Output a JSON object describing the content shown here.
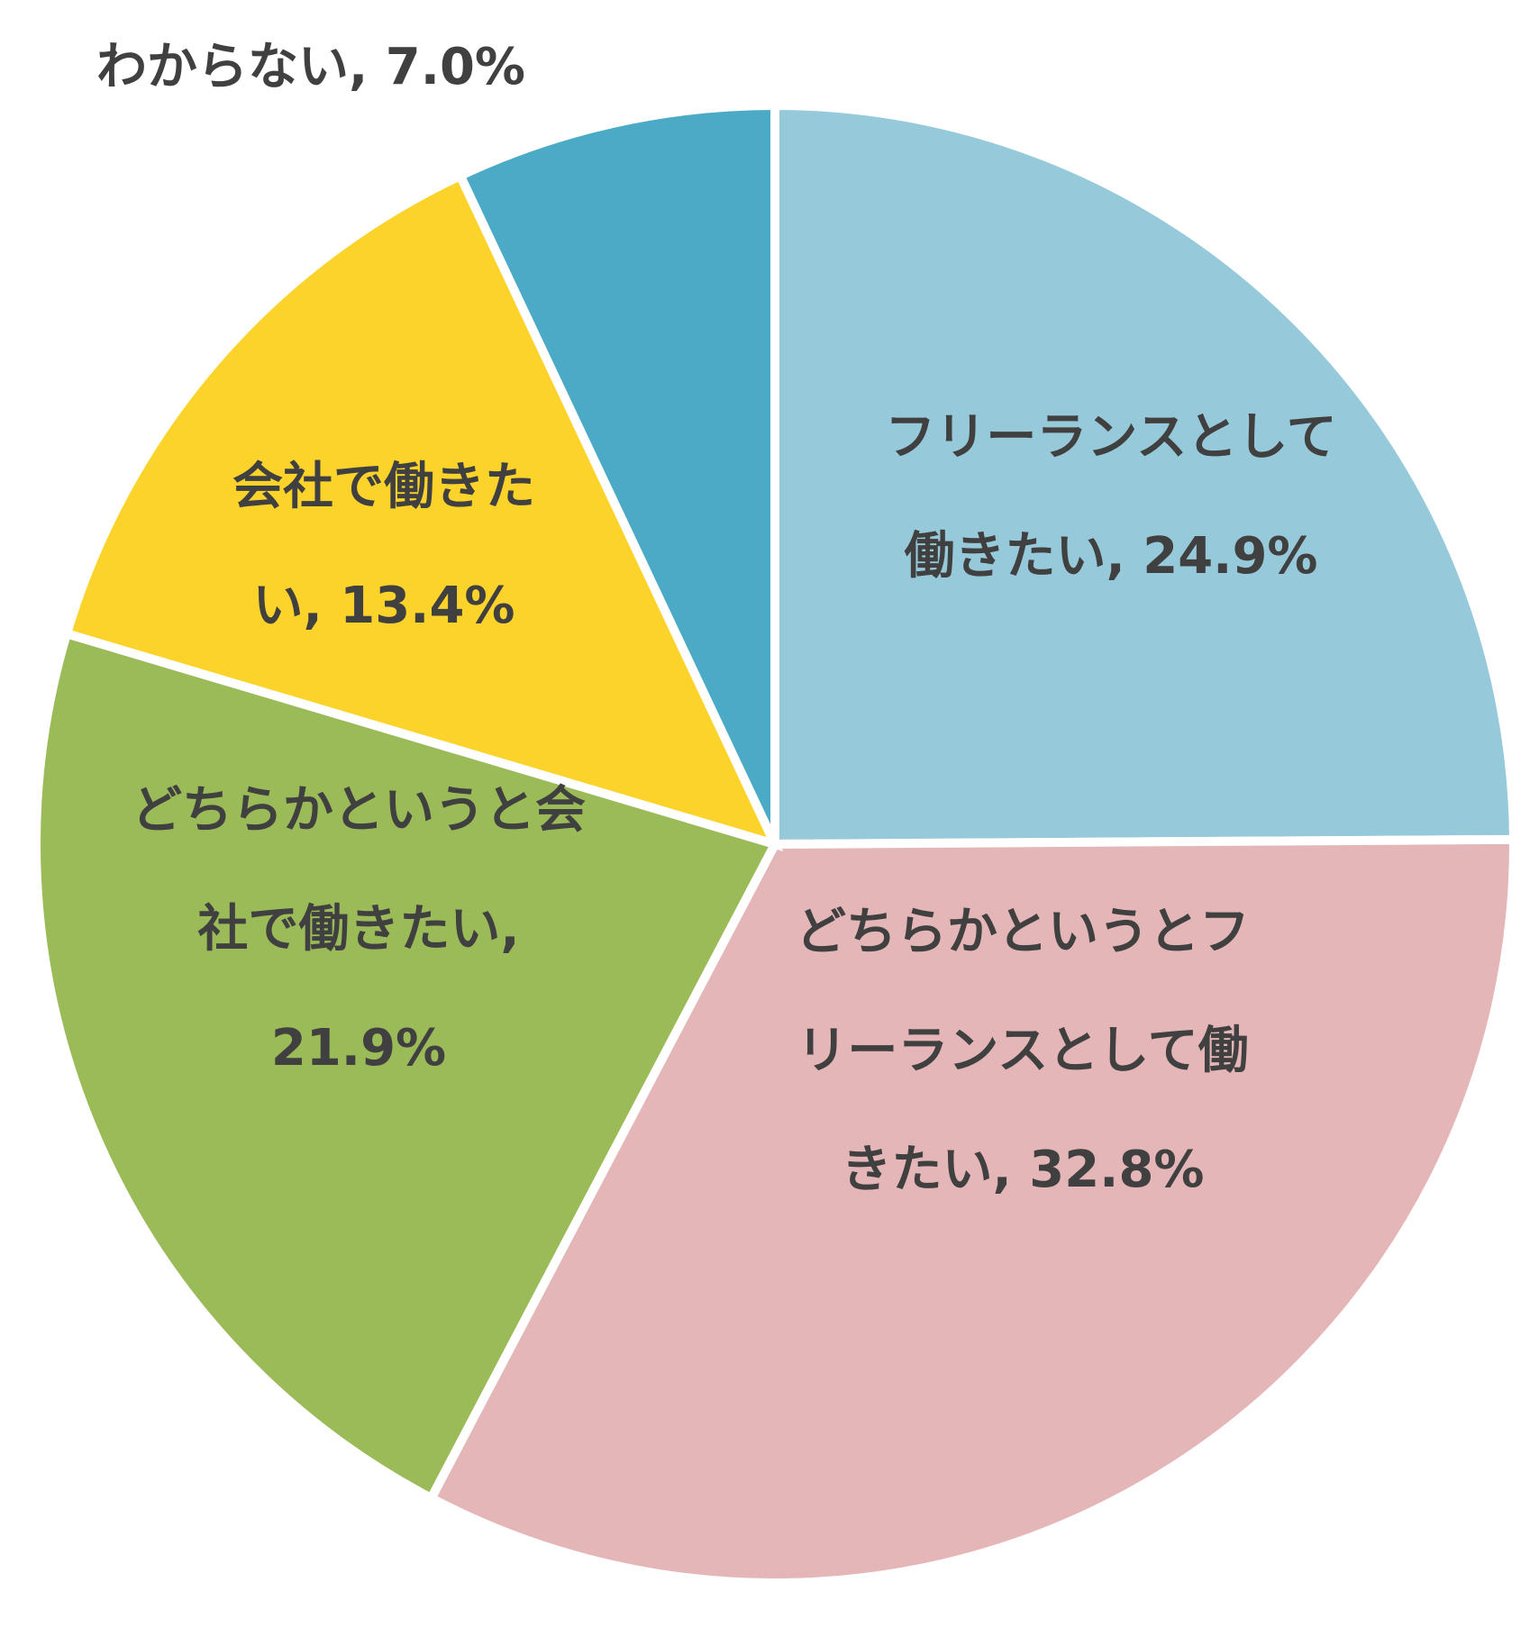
{
  "chart_data": {
    "type": "pie",
    "start_angle_deg": 0,
    "direction": "clockwise",
    "slices": [
      {
        "label": "フリーランスとして働きたい",
        "value": 24.9,
        "color": "#96CADB",
        "label_lines": [
          "フリーランスとして",
          "働きたい, 24.9%"
        ]
      },
      {
        "label": "どちらかというとフリーランスとして働きたい",
        "value": 32.8,
        "color": "#E4B6B7",
        "label_lines": [
          "どちらかというとフ",
          "リーランスとして働",
          "きたい, 32.8%"
        ]
      },
      {
        "label": "どちらかというと会社で働きたい",
        "value": 21.9,
        "color": "#9BBB59",
        "label_lines": [
          "どちらかというと会",
          "社で働きたい,",
          "21.9%"
        ]
      },
      {
        "label": "会社で働きたい",
        "value": 13.4,
        "color": "#FBD32A",
        "label_lines": [
          "会社で働きた",
          "い, 13.4%"
        ]
      },
      {
        "label": "わからない",
        "value": 7.0,
        "color": "#4BAAC5",
        "label_lines": [
          "わからない, 7.0%"
        ]
      }
    ]
  }
}
